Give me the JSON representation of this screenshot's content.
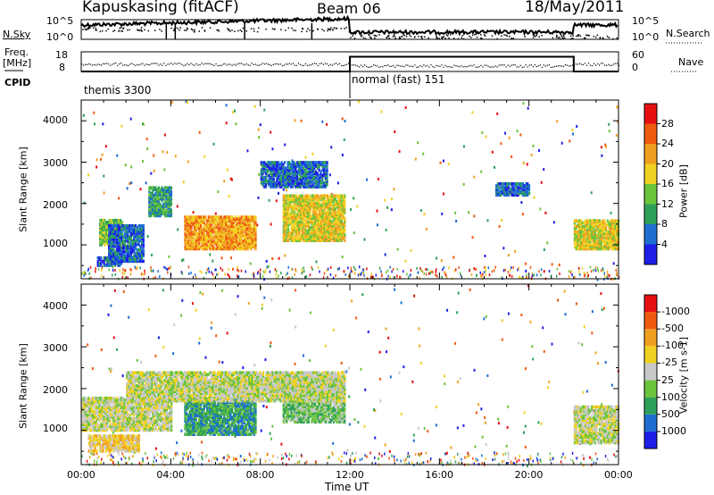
{
  "header": {
    "station": "Kapuskasing (fitACF)",
    "beam": "Beam 06",
    "date": "18/May/2011"
  },
  "sky_panel": {
    "left_label": "N.Sky",
    "right_label": "N.Search",
    "y_ticks_left": [
      "10^5",
      "10^0"
    ],
    "y_ticks_right": [
      "10^5",
      "10^0"
    ]
  },
  "freq_panel": {
    "left_label_1": "Freq.",
    "left_label_2": "[MHz]",
    "left_ticks": [
      "18",
      "8"
    ],
    "right_label": "Nave",
    "right_ticks": [
      "60",
      "0"
    ],
    "nave_level": [
      {
        "start_hour": 0,
        "end_hour": 12,
        "value": 0
      },
      {
        "start_hour": 12,
        "end_hour": 22,
        "value": 45
      },
      {
        "start_hour": 22,
        "end_hour": 24,
        "value": 0
      }
    ]
  },
  "cpid": {
    "label": "CPID",
    "segments": [
      {
        "start_hour": 0,
        "name": "themis 3300"
      },
      {
        "start_hour": 12,
        "name": "normal (fast) 151"
      }
    ]
  },
  "chart_data": [
    {
      "type": "heatmap",
      "title": "Power",
      "ylabel": "Slant Range [km]",
      "ylim": [
        180,
        4500
      ],
      "xlim_hours": [
        0,
        24
      ],
      "y_ticks": [
        1000,
        2000,
        3000,
        4000
      ],
      "colorbar": {
        "label": "Power [dB]",
        "ticks": [
          "4",
          "8",
          "12",
          "16",
          "20",
          "24",
          "28"
        ],
        "colors": [
          "#1e1ee6",
          "#1e6ed2",
          "#2ea05a",
          "#6cc43c",
          "#f0d020",
          "#f0a020",
          "#f05a10",
          "#e61010"
        ]
      },
      "regions": [
        {
          "from": 0.7,
          "to": 1.8,
          "range": [
            500,
            700
          ],
          "level": 1
        },
        {
          "from": 0.8,
          "to": 1.8,
          "range": [
            1000,
            1600
          ],
          "level": 3
        },
        {
          "from": 1.2,
          "to": 2.8,
          "range": [
            600,
            1500
          ],
          "level": 1
        },
        {
          "from": 3.0,
          "to": 4.0,
          "range": [
            1700,
            2400
          ],
          "level": 2
        },
        {
          "from": 4.6,
          "to": 7.8,
          "range": [
            900,
            1700
          ],
          "level": 5
        },
        {
          "from": 9.0,
          "to": 11.8,
          "range": [
            1100,
            2200
          ],
          "level": 4
        },
        {
          "from": 8.0,
          "to": 11.0,
          "range": [
            2400,
            3000
          ],
          "level": 1
        },
        {
          "from": 18.5,
          "to": 20.0,
          "range": [
            2200,
            2500
          ],
          "level": 1
        },
        {
          "from": 22.0,
          "to": 24.0,
          "range": [
            900,
            1600
          ],
          "level": 4
        }
      ]
    },
    {
      "type": "heatmap",
      "title": "Velocity",
      "ylabel": "Slant Range [km]",
      "xlabel": "Time UT",
      "ylim": [
        180,
        4500
      ],
      "xlim_hours": [
        0,
        24
      ],
      "y_ticks": [
        1000,
        2000,
        3000,
        4000
      ],
      "x_ticks": [
        "00:00",
        "04:00",
        "08:00",
        "12:00",
        "16:00",
        "20:00",
        "00:00"
      ],
      "colorbar": {
        "label": "Velocity [m s-1]",
        "ticks": [
          "1000",
          "500",
          "100",
          "25",
          "-25",
          "-100",
          "-500",
          "-1000"
        ],
        "colors": [
          "#1e1ee6",
          "#1e6ed2",
          "#2ea05a",
          "#6cc43c",
          "#c8c8c8",
          "#f0d020",
          "#f0a020",
          "#f05a10",
          "#e61010"
        ]
      },
      "regions": [
        {
          "from": 0.3,
          "to": 2.6,
          "range": [
            500,
            900
          ],
          "level": 5
        },
        {
          "from": 0.0,
          "to": 4.0,
          "range": [
            1000,
            1800
          ],
          "level": 4
        },
        {
          "from": 4.6,
          "to": 7.8,
          "range": [
            900,
            1800
          ],
          "level": 2
        },
        {
          "from": 9.0,
          "to": 11.8,
          "range": [
            1200,
            2300
          ],
          "level": 3
        },
        {
          "from": 2.0,
          "to": 11.8,
          "range": [
            1700,
            2400
          ],
          "level": 4
        },
        {
          "from": 22.0,
          "to": 24.0,
          "range": [
            700,
            1600
          ],
          "level": 4
        }
      ]
    }
  ],
  "colors": {
    "axis": "#000000",
    "background": "#ffffff"
  }
}
